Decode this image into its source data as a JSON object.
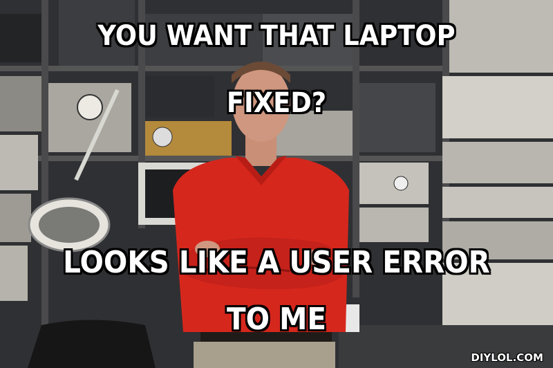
{
  "meme": {
    "top_text_line1": "YOU WANT THAT LAPTOP",
    "top_text_line2": "FIXED?",
    "bottom_text_line1": "LOOKS LIKE A USER ERROR",
    "bottom_text_line2": "TO ME",
    "watermark": "DIYLOL.COM"
  },
  "colors": {
    "shirt": "#d6271d",
    "equipment_dark": "#2b2d30",
    "equipment_light": "#c9c7bf",
    "caption_text": "#ffffff",
    "caption_outline": "#000000"
  }
}
